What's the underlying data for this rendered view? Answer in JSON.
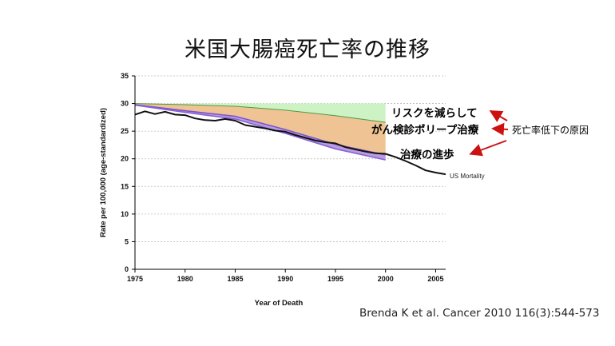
{
  "slide": {
    "title": "米国大腸癌死亡率の推移",
    "citation": "Brenda K et al. Cancer 2010 116(3):544-573"
  },
  "colors": {
    "risk_band": "#cdf2c4",
    "screening_band": "#efc393",
    "treatment_band": "#b79ee2",
    "observed_line": "#111111",
    "arrow": "#cc1111",
    "gridline": "#bbbbbb"
  },
  "chart_data": {
    "type": "area",
    "title": "",
    "xlabel": "Year of Death",
    "ylabel": "Rate per 100,000 (age-standardized)",
    "xlim": [
      1975,
      2006
    ],
    "ylim": [
      0,
      35
    ],
    "x_ticks": [
      1975,
      1980,
      1985,
      1990,
      1995,
      2000,
      2005
    ],
    "y_ticks": [
      0,
      5,
      10,
      15,
      20,
      25,
      30,
      35
    ],
    "grid": "horizontal-dotted",
    "modeled_x": [
      1975,
      1980,
      1985,
      1990,
      1995,
      2000
    ],
    "bands": [
      {
        "key": "risk",
        "label": "リスクを減らして",
        "upper": [
          30.0,
          30.0,
          30.0,
          30.0,
          30.0,
          30.0
        ],
        "lower": [
          30.0,
          29.8,
          29.5,
          28.8,
          27.8,
          26.6
        ]
      },
      {
        "key": "screening",
        "label": "がん検診ポリープ治療",
        "upper": [
          30.0,
          29.8,
          29.5,
          28.8,
          27.8,
          26.6
        ],
        "lower": [
          29.8,
          28.7,
          27.7,
          25.3,
          22.6,
          20.7
        ]
      },
      {
        "key": "treatment",
        "label": "治療の進歩",
        "upper": [
          29.8,
          28.7,
          27.7,
          25.3,
          22.6,
          20.7
        ],
        "lower": [
          29.7,
          28.4,
          27.2,
          24.6,
          21.8,
          19.8
        ]
      }
    ],
    "series": [
      {
        "name": "US Mortality",
        "x": [
          1975,
          1976,
          1977,
          1978,
          1979,
          1980,
          1981,
          1982,
          1983,
          1984,
          1985,
          1986,
          1987,
          1988,
          1989,
          1990,
          1991,
          1992,
          1993,
          1994,
          1995,
          1996,
          1997,
          1998,
          1999,
          2000,
          2001,
          2002,
          2003,
          2004,
          2005,
          2006
        ],
        "values": [
          28.0,
          28.6,
          28.1,
          28.5,
          28.0,
          27.9,
          27.3,
          27.0,
          26.9,
          27.2,
          26.9,
          26.1,
          25.8,
          25.5,
          25.1,
          24.9,
          24.3,
          23.8,
          23.3,
          23.0,
          22.8,
          22.1,
          21.7,
          21.3,
          21.0,
          20.9,
          20.3,
          19.6,
          18.8,
          17.9,
          17.5,
          17.2
        ]
      }
    ],
    "annotations": {
      "risk": "リスクを減らして",
      "screening": "がん検診ポリープ治療",
      "treatment": "治療の進歩",
      "side": "死亡率低下の原因"
    }
  }
}
